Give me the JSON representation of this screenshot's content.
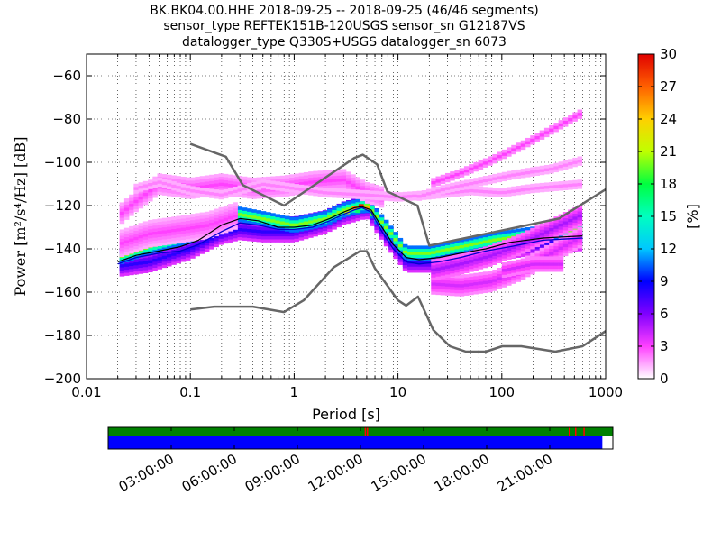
{
  "title": {
    "line1": "BK.BK04.00.HHE   2018-09-25 -- 2018-09-25  (46/46 segments)",
    "line2": "sensor_type REFTEK151B-120USGS sensor_sn G12187VS",
    "line3": "datalogger_type Q330S+USGS datalogger_sn 6073"
  },
  "chart_data": {
    "type": "heatmap",
    "xlabel": "Period [s]",
    "ylabel": "Power [m²/s⁴/Hz] [dB]",
    "x_scale": "log",
    "xlim": [
      0.01,
      1000
    ],
    "ylim": [
      -200,
      -50
    ],
    "x_ticks": [
      "0.01",
      "0.1",
      "1",
      "10",
      "100",
      "1000"
    ],
    "x_tick_values": [
      0.01,
      0.1,
      1,
      10,
      100,
      1000
    ],
    "y_ticks": [
      -200,
      -180,
      -160,
      -140,
      -120,
      -100,
      -80,
      -60
    ],
    "y_tick_labels": [
      "−200",
      "−180",
      "−160",
      "−140",
      "−120",
      "−100",
      "−80",
      "−60"
    ],
    "grid": "dotted",
    "colorbar": {
      "label": "[%]",
      "range": [
        0,
        30
      ],
      "ticks": [
        0,
        3,
        6,
        9,
        12,
        15,
        18,
        21,
        24,
        27,
        30
      ]
    },
    "noise_models": {
      "high": {
        "periods": [
          0.1,
          0.22,
          0.32,
          0.8,
          3.8,
          4.6,
          6.3,
          7.9,
          15.4,
          20,
          354.8,
          1000
        ],
        "db": [
          -91.5,
          -97.4,
          -110.5,
          -120,
          -98,
          -96.5,
          -101,
          -113.5,
          -120,
          -138.5,
          -126,
          -112.5
        ]
      },
      "low": {
        "periods": [
          0.1,
          0.17,
          0.4,
          0.8,
          1.24,
          2.4,
          4.3,
          5,
          6,
          10,
          12,
          15.6,
          21.9,
          31.6,
          45,
          70,
          101,
          154,
          328,
          600,
          1000
        ],
        "db": [
          -168,
          -166.7,
          -166.7,
          -169.2,
          -163.7,
          -148.6,
          -141.1,
          -141.1,
          -149,
          -163.8,
          -166.2,
          -162.1,
          -177.5,
          -185,
          -187.5,
          -187.5,
          -185,
          -185,
          -187.5,
          -185,
          -178
        ]
      }
    },
    "mean_curve": {
      "periods": [
        0.02,
        0.03,
        0.05,
        0.08,
        0.12,
        0.2,
        0.3,
        0.45,
        0.7,
        1,
        1.5,
        2.2,
        3,
        3.8,
        4.5,
        5.5,
        7,
        9,
        12,
        16,
        25,
        40,
        70,
        120,
        250,
        600
      ],
      "db": [
        -146,
        -143,
        -141,
        -139,
        -136,
        -129,
        -126,
        -127,
        -130,
        -130,
        -129,
        -126,
        -123,
        -121,
        -120.5,
        -122,
        -130,
        -138,
        -144,
        -145,
        -144,
        -142,
        -140,
        -137,
        -135,
        -134
      ]
    },
    "mode_curve": {
      "periods": [
        0.02,
        0.03,
        0.05,
        0.08,
        0.12,
        0.2,
        0.3,
        0.45,
        0.7,
        1,
        1.5,
        2.2,
        3,
        3.8,
        4.5,
        5.5,
        7,
        9,
        12,
        16,
        25,
        40,
        70,
        120,
        250,
        600
      ],
      "db": [
        -147,
        -144,
        -142,
        -141,
        -138,
        -132,
        -128,
        -129,
        -131,
        -131,
        -130,
        -127,
        -124,
        -122,
        -121,
        -123,
        -132,
        -140,
        -146,
        -147,
        -146,
        -144,
        -141,
        -139,
        -136,
        -135
      ]
    },
    "density_bands": [
      {
        "periods": [
          0.02,
          0.04,
          0.1,
          0.2,
          0.3,
          0.5,
          1,
          2,
          3,
          5,
          8,
          12,
          20,
          40,
          80,
          150,
          300,
          600
        ],
        "db": [
          -146,
          -142,
          -137,
          -129,
          -126,
          -129,
          -130,
          -127,
          -123,
          -120,
          -133,
          -144,
          -144,
          -141,
          -138,
          -136,
          -134,
          -133
        ],
        "percent": 14,
        "spread": 3
      },
      {
        "periods": [
          0.02,
          0.04,
          0.1,
          0.2,
          0.3,
          0.5,
          1,
          2,
          3,
          5,
          8,
          12,
          20,
          40,
          80,
          150,
          300,
          600
        ],
        "db": [
          -148,
          -146,
          -140,
          -133,
          -131,
          -132,
          -132,
          -128,
          -124,
          -121,
          -135,
          -146,
          -146,
          -143,
          -141,
          -139,
          -137,
          -136
        ],
        "percent": 8,
        "spread": 3
      },
      {
        "periods": [
          0.02,
          0.04,
          0.1,
          0.2,
          0.3,
          0.5,
          1,
          2,
          3,
          5,
          8,
          12,
          20,
          40,
          80,
          150,
          300,
          600
        ],
        "db": [
          -144,
          -139,
          -134,
          -127,
          -124,
          -126,
          -129,
          -126,
          -122,
          -119.5,
          -131,
          -142,
          -142,
          -139,
          -136,
          -134,
          -132,
          -131
        ],
        "percent": 20,
        "spread": 2
      },
      {
        "periods": [
          0.02,
          0.03,
          0.05,
          0.1,
          0.2,
          0.4,
          0.8,
          1.5,
          3,
          5,
          7
        ],
        "db": [
          -125,
          -118,
          -110,
          -112,
          -110,
          -112,
          -111,
          -109,
          -108,
          -114,
          -116
        ],
        "percent": 3,
        "spread": 3
      },
      {
        "periods": [
          0.03,
          0.05,
          0.1,
          0.2,
          0.5,
          1,
          2,
          5,
          10,
          20,
          50,
          100,
          200,
          600
        ],
        "db": [
          -112,
          -109,
          -113,
          -115,
          -110,
          -112,
          -114,
          -115,
          -116,
          -115,
          -113,
          -114,
          -112,
          -110
        ],
        "percent": 2,
        "spread": 1
      },
      {
        "periods": [
          0.02,
          0.04,
          0.08,
          0.15,
          0.3
        ],
        "db": [
          -138,
          -133,
          -131,
          -129,
          -124
        ],
        "percent": 3,
        "spread": 4
      },
      {
        "periods": [
          20,
          40,
          80,
          160,
          300,
          600
        ],
        "db": [
          -110,
          -105,
          -99,
          -92,
          -85,
          -77
        ],
        "percent": 3,
        "spread": 1
      },
      {
        "periods": [
          15,
          30,
          60,
          120,
          300,
          600
        ],
        "db": [
          -116,
          -112,
          -109,
          -106,
          -103,
          -99
        ],
        "percent": 2,
        "spread": 1
      },
      {
        "periods": [
          20,
          40,
          80,
          150,
          300,
          600
        ],
        "db": [
          -156,
          -157,
          -155,
          -150,
          -142,
          -134
        ],
        "percent": 4,
        "spread": 3
      },
      {
        "periods": [
          20,
          40,
          80,
          150,
          300,
          600
        ],
        "db": [
          -150,
          -147,
          -143,
          -138,
          -131,
          -124
        ],
        "percent": 5,
        "spread": 3
      },
      {
        "periods": [
          100,
          200,
          400
        ],
        "db": [
          -150,
          -147,
          -147
        ],
        "percent": 4,
        "spread": 2
      }
    ],
    "timeline": {
      "ticks": [
        "03:00:00",
        "06:00:00",
        "09:00:00",
        "12:00:00",
        "15:00:00",
        "18:00:00",
        "21:00:00"
      ],
      "tick_hours": [
        3,
        6,
        9,
        12,
        15,
        18,
        21
      ],
      "range_hours": [
        0,
        24
      ],
      "coverage_green_end_hours": 24,
      "coverage_blue_end_hours": 23.5,
      "gap_marks_hours": [
        21.9,
        22.2,
        22.6,
        12.2,
        12.3
      ]
    }
  }
}
